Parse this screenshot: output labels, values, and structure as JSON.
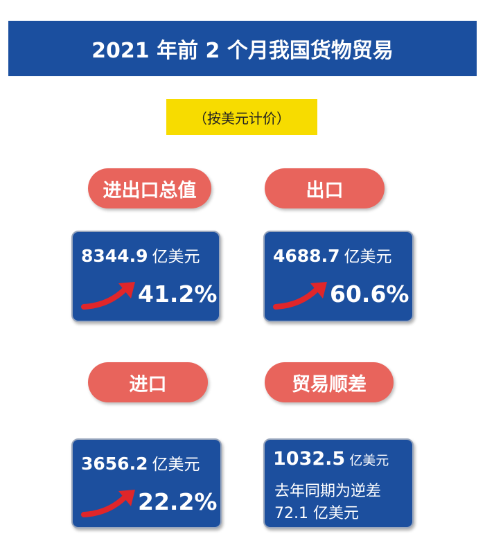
{
  "header": {
    "title": "2021 年前 2 个月我国货物贸易",
    "subtitle": "（按美元计价）"
  },
  "cards": [
    {
      "label": "进出口总值",
      "amount": "8344.9",
      "unit": "亿美元",
      "change": "41.2%"
    },
    {
      "label": "出口",
      "amount": "4688.7",
      "unit": "亿美元",
      "change": "60.6%"
    },
    {
      "label": "进口",
      "amount": "3656.2",
      "unit": "亿美元",
      "change": "22.2%"
    },
    {
      "label": "贸易顺差",
      "amount": "1032.5",
      "unit": "亿美元",
      "note": "去年同期为逆差",
      "note_amount": "72.1 亿美元"
    }
  ]
}
